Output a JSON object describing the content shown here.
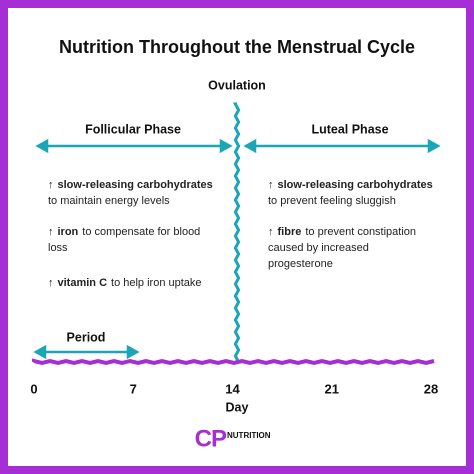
{
  "title": "Nutrition Throughout the Menstrual Cycle",
  "ovulation": "Ovulation",
  "follicular": {
    "label": "Follicular Phase",
    "bullets": [
      {
        "arrow": "↑",
        "bold": "slow-releasing carbohydrates",
        "more": [
          "to maintain energy levels"
        ]
      },
      {
        "arrow": "↑",
        "bold": "iron",
        "rest": "to compensate for blood",
        "more": [
          "loss"
        ]
      },
      {
        "arrow": "↑",
        "bold": "vitamin C",
        "rest": "to help iron uptake"
      }
    ]
  },
  "luteal": {
    "label": "Luteal Phase",
    "bullets": [
      {
        "arrow": "↑",
        "bold": "slow-releasing carbohydrates",
        "more": [
          "to prevent feeling sluggish"
        ]
      },
      {
        "arrow": "↑",
        "bold": "fibre",
        "rest": "to prevent constipation",
        "more": [
          "caused by increased",
          "progesterone"
        ]
      }
    ]
  },
  "period": "Period",
  "axis": {
    "ticks": [
      0,
      7,
      14,
      21,
      28
    ],
    "label": "Day"
  },
  "logo": {
    "mark": "CP",
    "text": "NUTRITION"
  }
}
